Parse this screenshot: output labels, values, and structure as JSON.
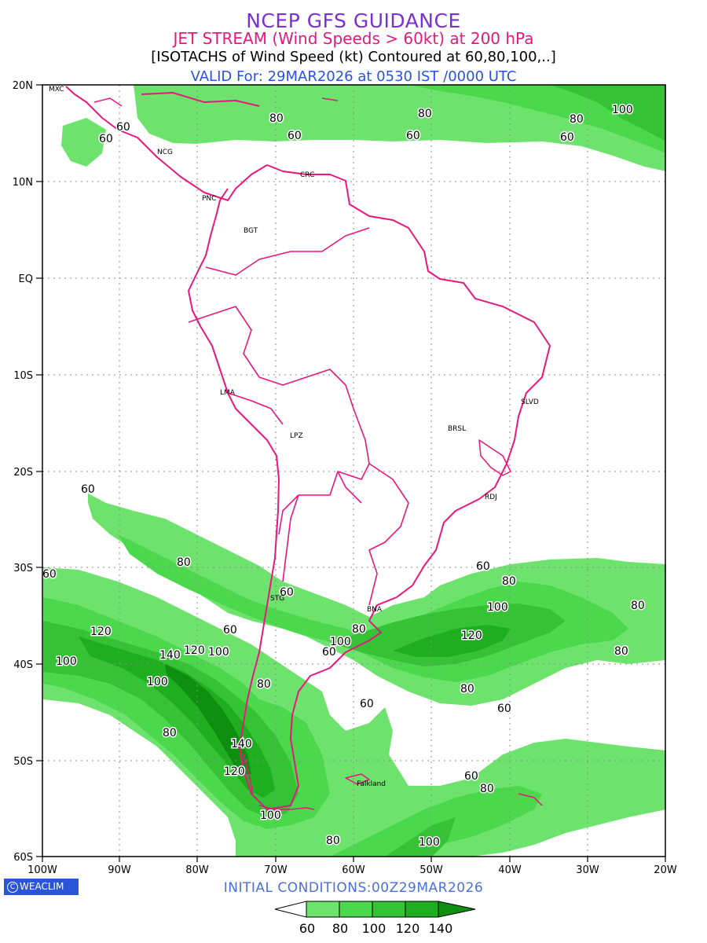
{
  "titles": {
    "line1": "NCEP GFS GUIDANCE",
    "line2": "JET STREAM (Wind Speeds > 60kt) at 200 hPa",
    "line3": "[ISOTACHS of Wind Speed (kt) Contoured at 60,80,100,..]",
    "line4": "VALID For: 29MAR2026 at 0530 IST /0000 UTC"
  },
  "axes": {
    "lat_labels": [
      "20N",
      "10N",
      "EQ",
      "10S",
      "20S",
      "30S",
      "40S",
      "50S",
      "60S"
    ],
    "lon_labels": [
      "100W",
      "90W",
      "80W",
      "70W",
      "60W",
      "50W",
      "40W",
      "30W",
      "20W"
    ]
  },
  "cities": [
    {
      "name": "MXC"
    },
    {
      "name": "NCG"
    },
    {
      "name": "CRC"
    },
    {
      "name": "PNC"
    },
    {
      "name": "BGT"
    },
    {
      "name": "LMA"
    },
    {
      "name": "LPZ"
    },
    {
      "name": "BRSL"
    },
    {
      "name": "SLVD"
    },
    {
      "name": "RDJ"
    },
    {
      "name": "STG"
    },
    {
      "name": "BNA"
    },
    {
      "name": "Falkland"
    }
  ],
  "contour_labels": [
    "60",
    "60",
    "80",
    "60",
    "80",
    "60",
    "80",
    "60",
    "100",
    "60",
    "80",
    "60",
    "80",
    "60",
    "60",
    "80",
    "100",
    "60",
    "80",
    "120",
    "80",
    "60",
    "100",
    "120",
    "80",
    "120",
    "140",
    "120",
    "100",
    "100",
    "60",
    "100",
    "60",
    "80",
    "80",
    "60",
    "140",
    "120",
    "80",
    "60",
    "80",
    "100",
    "80",
    "100"
  ],
  "colorbar": {
    "levels": [
      "60",
      "80",
      "100",
      "120",
      "140"
    ],
    "colors": [
      "#ffffff",
      "#6de36d",
      "#4cd84c",
      "#35c335",
      "#1fae1f",
      "#0f8f0f"
    ]
  },
  "colors": {
    "land": "#ff1a8c",
    "jet60": "#6de36d",
    "jet80": "#4cd84c",
    "jet100": "#35c335",
    "jet120": "#1fae1f",
    "jet140": "#0f8f0f"
  },
  "footer": {
    "initial_conditions": "INITIAL CONDITIONS:00Z29MAR2026",
    "logo": "WEACLIM",
    "logo_symbol": "C"
  }
}
